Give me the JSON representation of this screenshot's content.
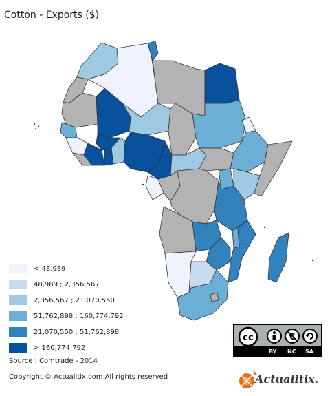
{
  "title": "Cotton - Exports ($)",
  "legend": {
    "items": [
      {
        "label": "< 48,989",
        "color": "#eef3fd"
      },
      {
        "label": "48,989 ; 2,356,567",
        "color": "#c6dbef"
      },
      {
        "label": "2,356,567 ; 21,070,550",
        "color": "#9ecae1"
      },
      {
        "label": "51,762,898 ; 160,774,792",
        "color": "#6baed6"
      },
      {
        "label": "21,070,550 ; 51,762,898",
        "color": "#3182bd"
      },
      {
        "label": "> 160,774,792",
        "color": "#08519c"
      }
    ],
    "nodata_color": "#b3b3b3"
  },
  "source": "Source : Comtrade - 2014",
  "copyright": "Copyright © Actualitix.com All rights reserved",
  "license": {
    "by": "BY",
    "nc": "NC",
    "sa": "SA"
  },
  "logo_text": "Actualitix."
}
